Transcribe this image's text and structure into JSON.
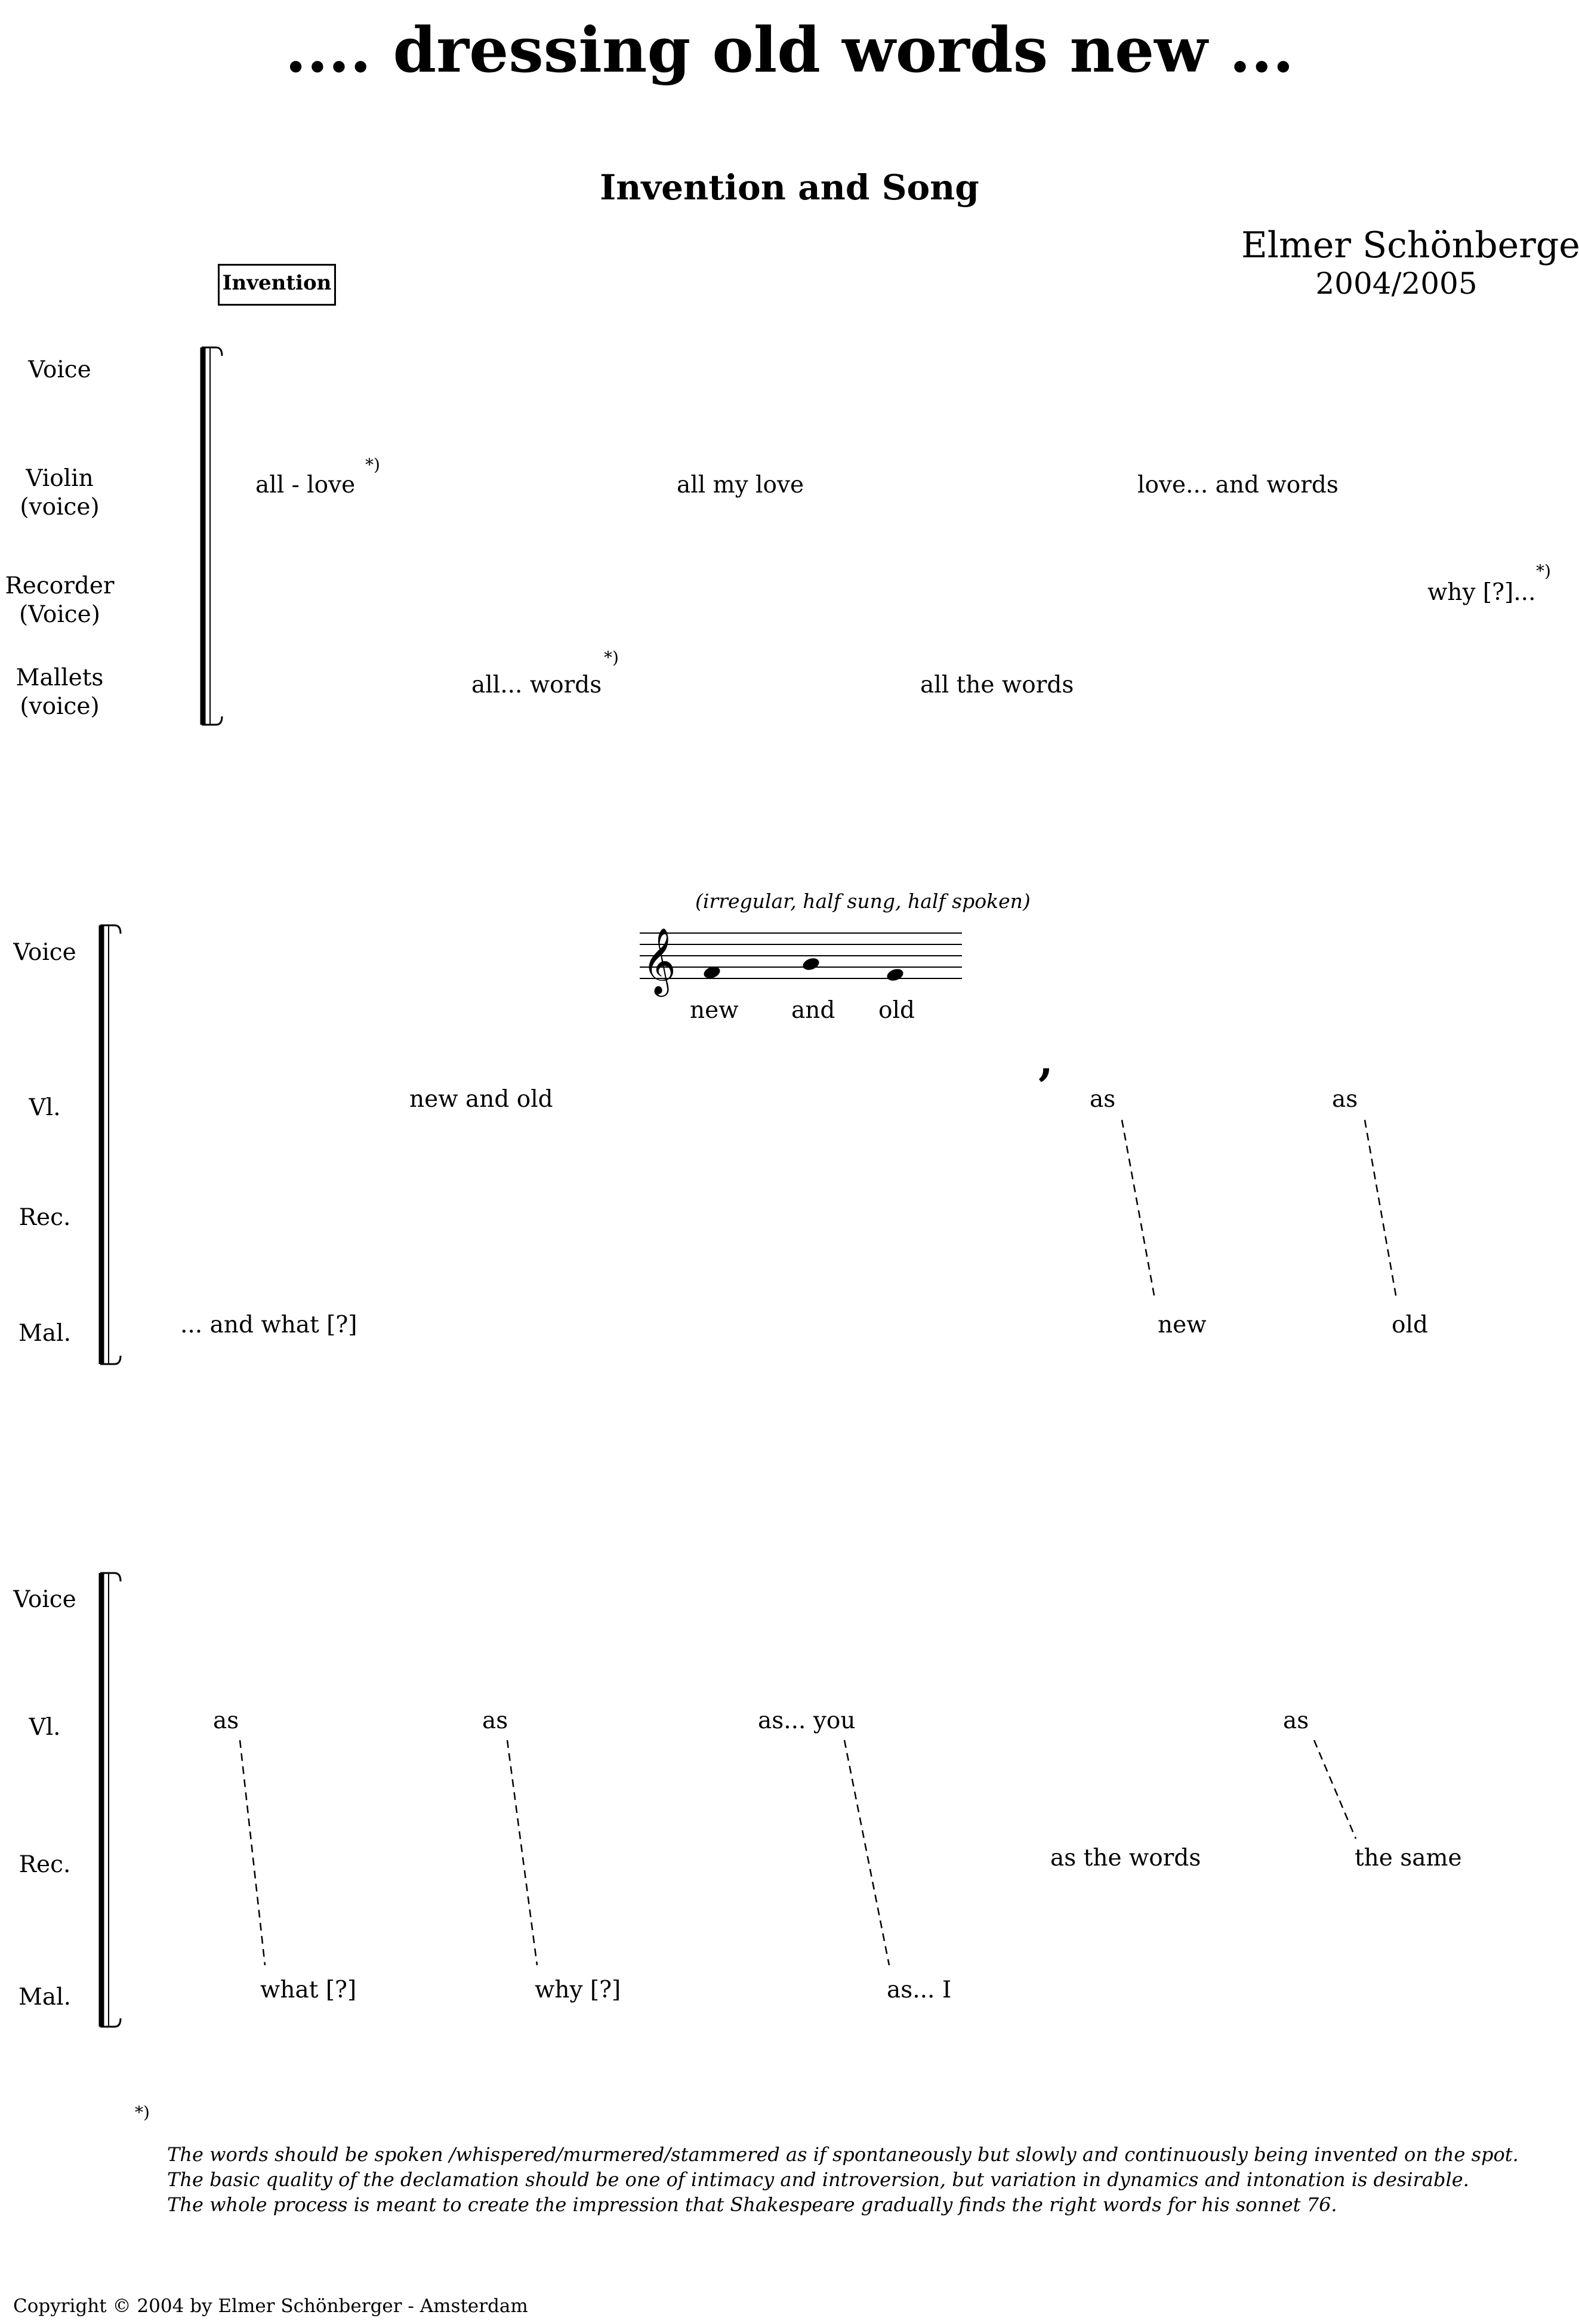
{
  "header": {
    "title": ".... dressing old words new ...",
    "subtitle": "Invention and Song",
    "composer": "Elmer Schönberger",
    "years": "2004/2005",
    "section_marker": "Invention"
  },
  "system1": {
    "labels": {
      "voice": "Voice",
      "violin": "Violin\n(voice)",
      "recorder": "Recorder\n(Voice)",
      "mallets": "Mallets\n(voice)"
    },
    "violin_texts": [
      "all - love",
      "all my love",
      "love... and words"
    ],
    "recorder_texts": [
      "why [?]..."
    ],
    "mallets_texts": [
      "all... words",
      "all the words"
    ],
    "footnote_mark": "*)"
  },
  "system2": {
    "labels": {
      "voice": "Voice",
      "violin": "Vl.",
      "recorder": "Rec.",
      "mallets": "Mal."
    },
    "performance_note": "(irregular, half sung, half spoken)",
    "voice_lyrics": [
      "new",
      "and",
      "old"
    ],
    "violin_texts": [
      "new and old",
      "as",
      "as"
    ],
    "mallets_texts": [
      "... and what [?]",
      "new",
      "old"
    ],
    "breath_mark": ","
  },
  "system3": {
    "labels": {
      "voice": "Voice",
      "violin": "Vl.",
      "recorder": "Rec.",
      "mallets": "Mal."
    },
    "violin_texts": [
      "as",
      "as",
      "as... you",
      "as"
    ],
    "recorder_texts": [
      "as the words",
      "the same"
    ],
    "mallets_texts": [
      "what [?]",
      "why [?]",
      "as... I"
    ]
  },
  "footnote": {
    "mark": "*)",
    "lines": [
      "The words should be spoken /whispered/murmered/stammered as if spontaneously but slowly and continuously being invented on the spot.",
      "The basic quality of the declamation should be one of intimacy and introversion, but variation in dynamics and intonation is desirable.",
      "The whole process is meant to create the impression that Shakespeare gradually finds the right words for his sonnet 76."
    ]
  },
  "copyright": "Copyright © 2004 by Elmer Schönberger - Amsterdam"
}
